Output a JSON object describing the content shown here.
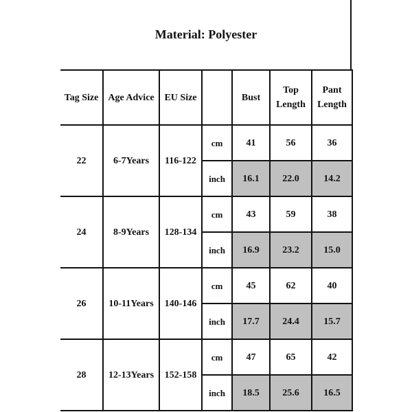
{
  "title": "Material: Polyester",
  "headers": {
    "tag_size": "Tag Size",
    "age_advice": "Age Advice",
    "eu_size": "EU Size",
    "unit": "",
    "bust": "Bust",
    "top_length_1": "Top",
    "top_length_2": "Length",
    "pant_length_1": "Pant",
    "pant_length_2": "Length"
  },
  "units": {
    "cm": "cm",
    "inch": "inch"
  },
  "highlight_color": "#c0c0c0",
  "rows": [
    {
      "tag": "22",
      "age": "6-7Years",
      "eu": "116-122",
      "cm": [
        "41",
        "56",
        "36"
      ],
      "inch": [
        "16.1",
        "22.0",
        "14.2"
      ]
    },
    {
      "tag": "24",
      "age": "8-9Years",
      "eu": "128-134",
      "cm": [
        "43",
        "59",
        "38"
      ],
      "inch": [
        "16.9",
        "23.2",
        "15.0"
      ]
    },
    {
      "tag": "26",
      "age": "10-11Years",
      "eu": "140-146",
      "cm": [
        "45",
        "62",
        "40"
      ],
      "inch": [
        "17.7",
        "24.4",
        "15.7"
      ]
    },
    {
      "tag": "28",
      "age": "12-13Years",
      "eu": "152-158",
      "cm": [
        "47",
        "65",
        "42"
      ],
      "inch": [
        "18.5",
        "25.6",
        "16.5"
      ]
    }
  ]
}
